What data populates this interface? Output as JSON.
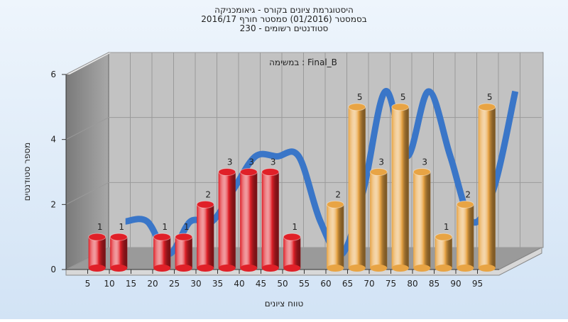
{
  "chart_data": {
    "type": "bar",
    "title_lines": [
      "היסטוגרמת ציונים בקורס - גיאומכניקה",
      "בסמסטר  (01/2016)  סמסטר חורף 2016/17",
      "סטודנטים רשומים - 230"
    ],
    "annotation": "במשימה : Final_B",
    "x_label": "טווח ציונים",
    "y_label": "מספר סטודנטים",
    "x": [
      5,
      10,
      15,
      20,
      25,
      30,
      35,
      40,
      45,
      50,
      55,
      60,
      65,
      70,
      75,
      80,
      85,
      90,
      95
    ],
    "values": [
      1,
      1,
      0,
      1,
      1,
      2,
      3,
      3,
      3,
      1,
      0,
      2,
      5,
      3,
      5,
      3,
      1,
      2,
      5
    ],
    "colors": [
      "#e02028",
      "#e02028",
      "#e02028",
      "#e02028",
      "#e02028",
      "#e02028",
      "#e02028",
      "#e02028",
      "#e02028",
      "#e02028",
      "#e02028",
      "#e8a444",
      "#e8a444",
      "#e8a444",
      "#e8a444",
      "#e8a444",
      "#e8a444",
      "#e8a444",
      "#e8a444"
    ],
    "bin_width": 5,
    "curve_color": "#3a76c8",
    "xlim": [
      0,
      100
    ],
    "xticks": [
      5,
      10,
      15,
      20,
      25,
      30,
      35,
      40,
      45,
      50,
      55,
      60,
      65,
      70,
      75,
      80,
      85,
      90,
      95
    ],
    "ylim": [
      0,
      6
    ],
    "yticks": [
      0,
      2,
      4,
      6
    ],
    "grid": true
  }
}
